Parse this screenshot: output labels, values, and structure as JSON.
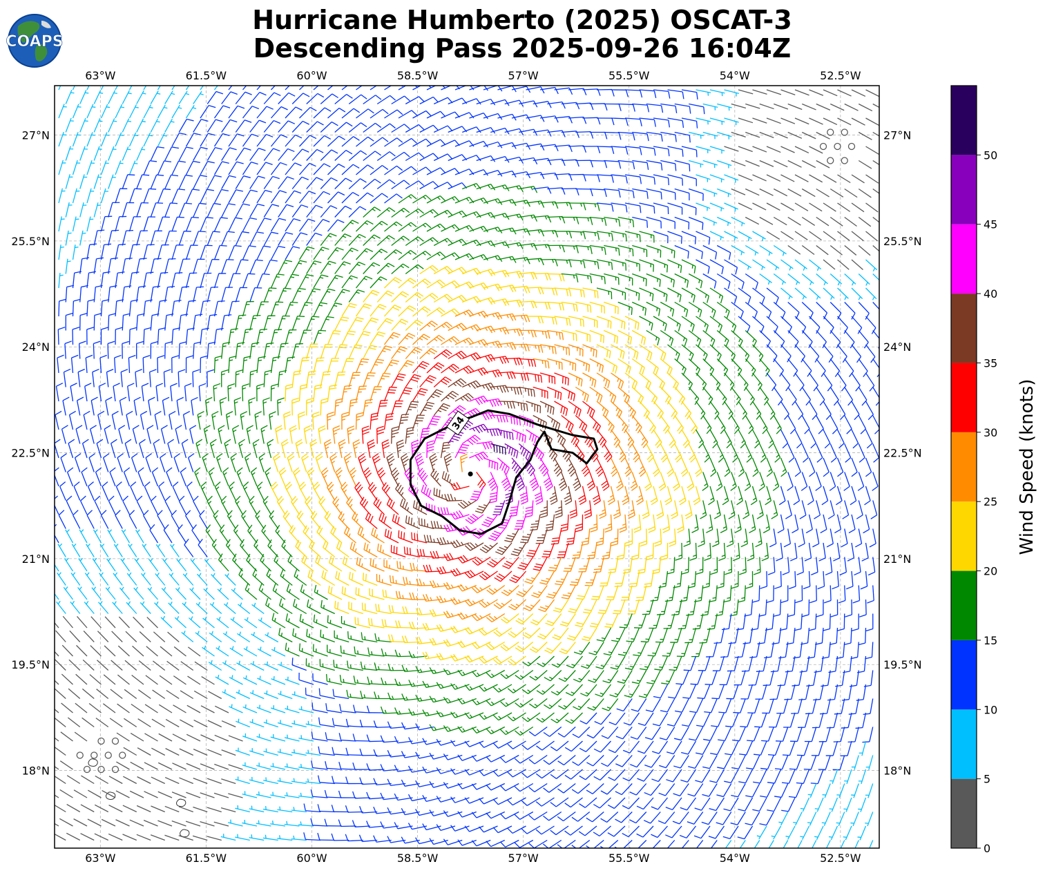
{
  "title": {
    "line1": "Hurricane Humberto (2025) OSCAT-3",
    "line2": "Descending Pass 2025-09-26 16:04Z"
  },
  "logo": {
    "text": "COAPS",
    "icon": "globe-logo-icon"
  },
  "map": {
    "lon_range": [
      -63.65,
      -51.95
    ],
    "lat_range": [
      16.9,
      27.7
    ],
    "lon_ticks": [
      {
        "value": -63.0,
        "label": "63°W"
      },
      {
        "value": -61.5,
        "label": "61.5°W"
      },
      {
        "value": -60.0,
        "label": "60°W"
      },
      {
        "value": -58.5,
        "label": "58.5°W"
      },
      {
        "value": -57.0,
        "label": "57°W"
      },
      {
        "value": -55.5,
        "label": "55.5°W"
      },
      {
        "value": -54.0,
        "label": "54°W"
      },
      {
        "value": -52.5,
        "label": "52.5°W"
      }
    ],
    "lat_ticks": [
      {
        "value": 27.0,
        "label": "27°N"
      },
      {
        "value": 25.5,
        "label": "25.5°N"
      },
      {
        "value": 24.0,
        "label": "24°N"
      },
      {
        "value": 22.5,
        "label": "22.5°N"
      },
      {
        "value": 21.0,
        "label": "21°N"
      },
      {
        "value": 19.5,
        "label": "19.5°N"
      },
      {
        "value": 18.0,
        "label": "18°N"
      }
    ],
    "grid": "dashed",
    "storm_center": {
      "lon": -57.75,
      "lat": 22.2
    },
    "contour": {
      "label": "34",
      "units": "knots",
      "points": [
        [
          -57.75,
          23.0
        ],
        [
          -57.5,
          23.1
        ],
        [
          -57.2,
          23.05
        ],
        [
          -56.8,
          22.9
        ],
        [
          -56.3,
          22.75
        ],
        [
          -56.0,
          22.7
        ],
        [
          -55.95,
          22.55
        ],
        [
          -56.1,
          22.35
        ],
        [
          -56.3,
          22.5
        ],
        [
          -56.6,
          22.55
        ],
        [
          -56.7,
          22.8
        ],
        [
          -56.8,
          22.65
        ],
        [
          -56.9,
          22.4
        ],
        [
          -57.1,
          22.15
        ],
        [
          -57.2,
          21.8
        ],
        [
          -57.3,
          21.5
        ],
        [
          -57.6,
          21.35
        ],
        [
          -57.9,
          21.4
        ],
        [
          -58.15,
          21.6
        ],
        [
          -58.45,
          21.75
        ],
        [
          -58.6,
          22.05
        ],
        [
          -58.6,
          22.4
        ],
        [
          -58.4,
          22.7
        ],
        [
          -58.1,
          22.85
        ],
        [
          -57.95,
          22.95
        ],
        [
          -57.75,
          23.0
        ]
      ]
    },
    "islands": [
      {
        "lon": -63.1,
        "lat": 18.12
      },
      {
        "lon": -62.85,
        "lat": 17.65
      },
      {
        "lon": -61.85,
        "lat": 17.55
      },
      {
        "lon": -61.8,
        "lat": 17.12
      }
    ]
  },
  "colorbar": {
    "label": "Wind Speed (knots)",
    "tick_labels": [
      "0",
      "5",
      "10",
      "15",
      "20",
      "25",
      "30",
      "35",
      "40",
      "45",
      "50"
    ],
    "bins": [
      {
        "min": 0,
        "max": 5,
        "color": "#595959"
      },
      {
        "min": 5,
        "max": 10,
        "color": "#00bfff"
      },
      {
        "min": 10,
        "max": 15,
        "color": "#0033ff"
      },
      {
        "min": 15,
        "max": 20,
        "color": "#008800"
      },
      {
        "min": 20,
        "max": 25,
        "color": "#ffd700"
      },
      {
        "min": 25,
        "max": 30,
        "color": "#ff8c00"
      },
      {
        "min": 30,
        "max": 35,
        "color": "#ff0000"
      },
      {
        "min": 35,
        "max": 40,
        "color": "#7b3a24"
      },
      {
        "min": 40,
        "max": 45,
        "color": "#ff00ff"
      },
      {
        "min": 45,
        "max": 50,
        "color": "#8800bb"
      },
      {
        "min": 50,
        "max": 55,
        "color": "#2a005e"
      }
    ]
  }
}
